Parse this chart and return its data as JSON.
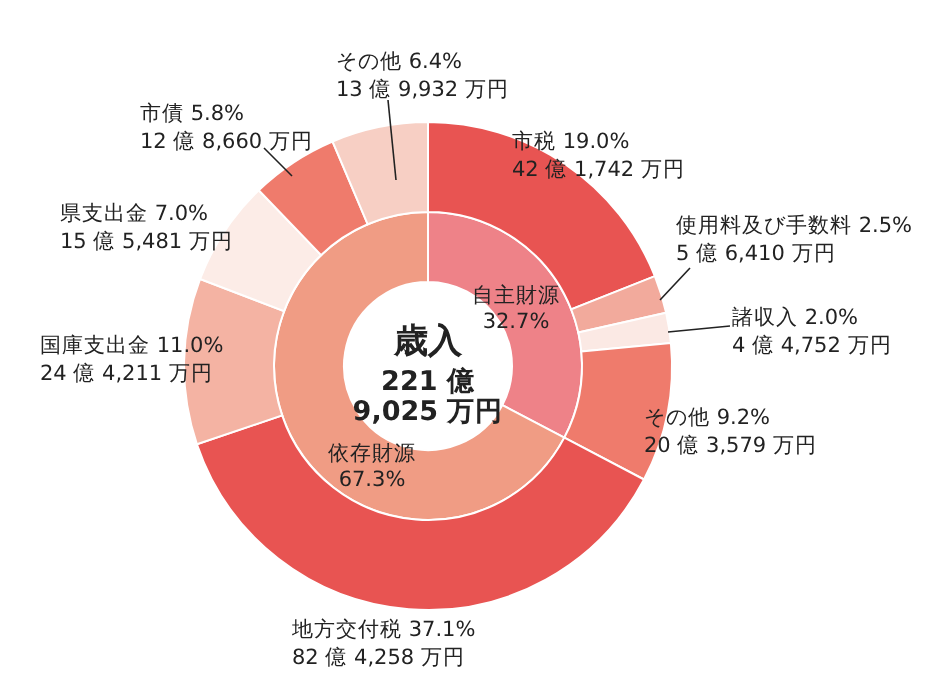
{
  "chart_data": [
    {
      "type": "donut",
      "title": "歳入",
      "subtitle": "221 億\n9,025 万円",
      "categories": [
        "自主財源",
        "依存財源"
      ],
      "values": [
        32.7,
        67.3
      ],
      "colors": [
        "#ee8288",
        "#f09c84"
      ],
      "value_labels": [
        "32.7%",
        "67.3%"
      ]
    },
    {
      "type": "donut",
      "categories": [
        "市税",
        "使用料及び手数料",
        "諸収入",
        "その他",
        "地方交付税",
        "国庫支出金",
        "県支出金",
        "市債",
        "その他"
      ],
      "values": [
        19.0,
        2.5,
        2.0,
        9.2,
        37.1,
        11.0,
        7.0,
        5.8,
        6.4
      ],
      "colors": [
        "#e85452",
        "#f2aa9c",
        "#fbe9e4",
        "#ef7b6c",
        "#e85452",
        "#f4b3a3",
        "#fcece7",
        "#ef7b6c",
        "#f7cfc4"
      ],
      "value_labels": [
        "19.0%",
        "2.5%",
        "2.0%",
        "9.2%",
        "37.1%",
        "11.0%",
        "7.0%",
        "5.8%",
        "6.4%"
      ],
      "annotations": [
        "42 億 1,742 万円",
        "5 億 6,410 万円",
        "4 億 4,752 万円",
        "20 億 3,579 万円",
        "82 億 4,258 万円",
        "24 億 4,211 万円",
        "15 億 5,481 万円",
        "12 億 8,660 万円",
        "13 億 9,932 万円"
      ]
    }
  ]
}
